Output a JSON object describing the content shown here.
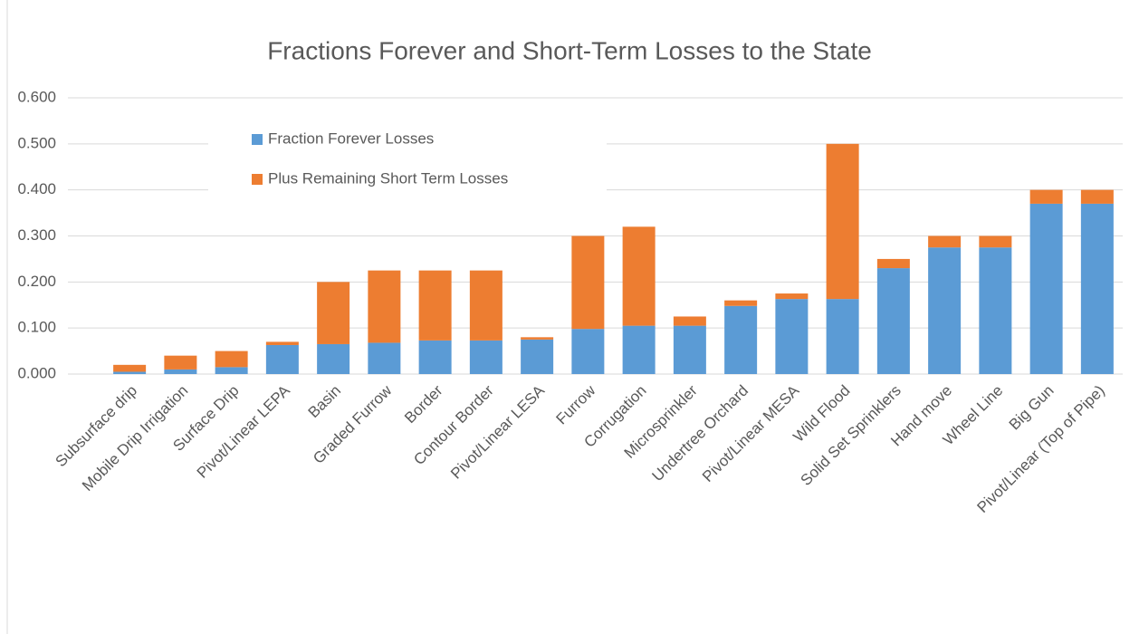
{
  "chart_data": {
    "type": "stacked_bar",
    "title": "Fractions Forever and Short-Term Losses to the State",
    "categories": [
      "Subsurface drip",
      "Mobile Drip Irrigation",
      "Surface Drip",
      "Pivot/Linear LEPA",
      "Basin",
      "Graded Furrow",
      "Border",
      "Contour Border",
      "Pivot/Linear LESA",
      "Furrow",
      "Corrugation",
      "Microsprinkler",
      "Undertree Orchard",
      "Pivot/Linear MESA",
      "Wild Flood",
      "Solid Set Sprinklers",
      "Hand move",
      "Wheel Line",
      "Big Gun",
      "Pivot/Linear (Top of Pipe)"
    ],
    "series": [
      {
        "name": "Fraction Forever Losses",
        "color": "#5b9bd5",
        "values": [
          0.005,
          0.01,
          0.015,
          0.063,
          0.065,
          0.068,
          0.073,
          0.073,
          0.075,
          0.098,
          0.105,
          0.105,
          0.148,
          0.163,
          0.163,
          0.23,
          0.275,
          0.275,
          0.37,
          0.37
        ]
      },
      {
        "name": "Plus Remaining Short Term Losses",
        "color": "#ed7d31",
        "values": [
          0.015,
          0.03,
          0.035,
          0.007,
          0.135,
          0.157,
          0.152,
          0.152,
          0.005,
          0.202,
          0.215,
          0.02,
          0.012,
          0.012,
          0.337,
          0.02,
          0.025,
          0.025,
          0.03,
          0.03
        ]
      }
    ],
    "ylim": [
      0,
      0.6
    ],
    "yticks": [
      {
        "value": 0,
        "label": "0.000"
      },
      {
        "value": 0.1,
        "label": "0.100"
      },
      {
        "value": 0.2,
        "label": "0.200"
      },
      {
        "value": 0.3,
        "label": "0.300"
      },
      {
        "value": 0.4,
        "label": "0.400"
      },
      {
        "value": 0.5,
        "label": "0.500"
      },
      {
        "value": 0.6,
        "label": "0.600"
      }
    ],
    "grid": true
  }
}
